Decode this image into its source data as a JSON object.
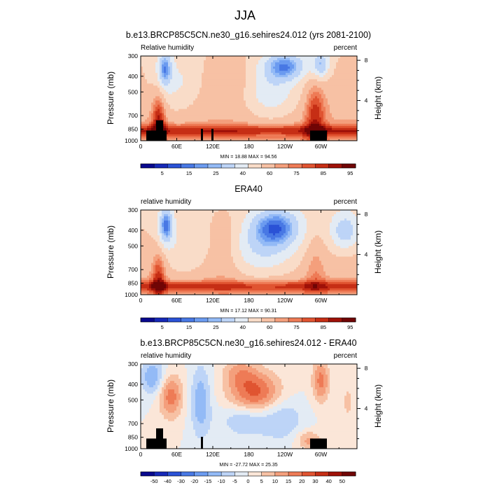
{
  "figure": {
    "title": "JJA"
  },
  "panels": [
    {
      "title": "b.e13.BRCP85C5CN.ne30_g16.sehires24.012 (yrs 2081-2100)",
      "left_label": "Relative humidity",
      "right_label": "percent",
      "minmax": "MIN = 18.88  MAX = 94.56"
    },
    {
      "title": "ERA40",
      "left_label": "relative humidity",
      "right_label": "percent",
      "minmax": "MIN = 17.12  MAX = 90.31"
    },
    {
      "title": "b.e13.BRCP85C5CN.ne30_g16.sehires24.012 - ERA40",
      "left_label": "relative humidity",
      "right_label": "percent",
      "minmax": "MIN = -27.72  MAX = 25.35"
    }
  ],
  "axes": {
    "ylabel_left": "Pressure (mb)",
    "ylabel_right": "Height (km)",
    "x_ticks": [
      "0",
      "60E",
      "120E",
      "180",
      "120W",
      "60W"
    ],
    "y_ticks": [
      "300",
      "400",
      "500",
      "700",
      "850",
      "1000"
    ],
    "height_ticks": [
      "8",
      "4"
    ]
  },
  "colorbars": {
    "rh_labels": [
      "5",
      "15",
      "25",
      "40",
      "60",
      "75",
      "85",
      "95"
    ],
    "diff_labels": [
      "-50",
      "-40",
      "-30",
      "-20",
      "-15",
      "-10",
      "-5",
      "0",
      "5",
      "10",
      "15",
      "20",
      "30",
      "40",
      "50"
    ]
  },
  "chart_data": [
    {
      "type": "heatmap",
      "title": "b.e13.BRCP85C5CN.ne30_g16.sehires24.012 (yrs 2081-2100)",
      "variable": "Relative humidity",
      "units": "percent",
      "xlabel": "",
      "ylabel": "Pressure (mb)",
      "ylabel_right": "Height (km)",
      "x_range": [
        0,
        360
      ],
      "y_range": [
        1000,
        300
      ],
      "y_scale": "log",
      "contour_levels": [
        5,
        10,
        15,
        20,
        25,
        30,
        40,
        50,
        60,
        70,
        75,
        80,
        85,
        90,
        95
      ],
      "min": 18.88,
      "max": 94.56,
      "features": [
        {
          "lon": 40,
          "pressure": 420,
          "value": 20
        },
        {
          "lon": 240,
          "pressure": 400,
          "value": 20
        },
        {
          "lon": 300,
          "pressure": 400,
          "value": 25
        },
        {
          "lon": 30,
          "pressure": 800,
          "value": 90
        },
        {
          "lon": 290,
          "pressure": 760,
          "value": 90
        },
        {
          "lon": 150,
          "pressure": 500,
          "value": 70
        }
      ]
    },
    {
      "type": "heatmap",
      "title": "ERA40",
      "variable": "relative humidity",
      "units": "percent",
      "xlabel": "",
      "ylabel": "Pressure (mb)",
      "ylabel_right": "Height (km)",
      "x_range": [
        0,
        360
      ],
      "y_range": [
        1000,
        300
      ],
      "y_scale": "log",
      "contour_levels": [
        5,
        10,
        15,
        20,
        25,
        30,
        40,
        50,
        60,
        70,
        75,
        80,
        85,
        90,
        95
      ],
      "min": 17.12,
      "max": 90.31,
      "features": [
        {
          "lon": 42,
          "pressure": 420,
          "value": 15
        },
        {
          "lon": 225,
          "pressure": 440,
          "value": 18
        },
        {
          "lon": 340,
          "pressure": 460,
          "value": 25
        },
        {
          "lon": 30,
          "pressure": 820,
          "value": 85
        },
        {
          "lon": 140,
          "pressure": 600,
          "value": 70
        }
      ]
    },
    {
      "type": "heatmap",
      "title": "b.e13.BRCP85C5CN.ne30_g16.sehires24.012 - ERA40",
      "variable": "relative humidity",
      "units": "percent",
      "xlabel": "",
      "ylabel": "Pressure (mb)",
      "ylabel_right": "Height (km)",
      "x_range": [
        0,
        360
      ],
      "y_range": [
        1000,
        300
      ],
      "y_scale": "log",
      "contour_levels": [
        -50,
        -40,
        -30,
        -20,
        -15,
        -10,
        -5,
        0,
        5,
        10,
        15,
        20,
        30,
        40,
        50
      ],
      "min": -27.72,
      "max": 25.35,
      "features": [
        {
          "lon": 190,
          "pressure": 500,
          "value": 22
        },
        {
          "lon": 50,
          "pressure": 520,
          "value": 20
        },
        {
          "lon": 300,
          "pressure": 400,
          "value": 18
        },
        {
          "lon": 20,
          "pressure": 400,
          "value": -15
        },
        {
          "lon": 100,
          "pressure": 560,
          "value": -15
        },
        {
          "lon": 175,
          "pressure": 680,
          "value": -12
        }
      ]
    }
  ],
  "colors": {
    "rh_scale": [
      "#08088e",
      "#1628b7",
      "#2a52d6",
      "#4878e4",
      "#6b9bf0",
      "#93baf6",
      "#bdd4f7",
      "#e3ebf4",
      "#f9dcc8",
      "#f7c1a4",
      "#f49f7c",
      "#ee7b56",
      "#e05431",
      "#c62e15",
      "#9f1108",
      "#700505"
    ],
    "diff_scale": [
      "#08088e",
      "#1628b7",
      "#2a52d6",
      "#4878e4",
      "#6b9bf0",
      "#93baf6",
      "#bdd4f7",
      "#e3ebf4",
      "#fbe6d8",
      "#f7c1a4",
      "#f49f7c",
      "#ee7b56",
      "#e05431",
      "#c62e15",
      "#9f1108",
      "#700505"
    ],
    "topography": "#000000"
  }
}
